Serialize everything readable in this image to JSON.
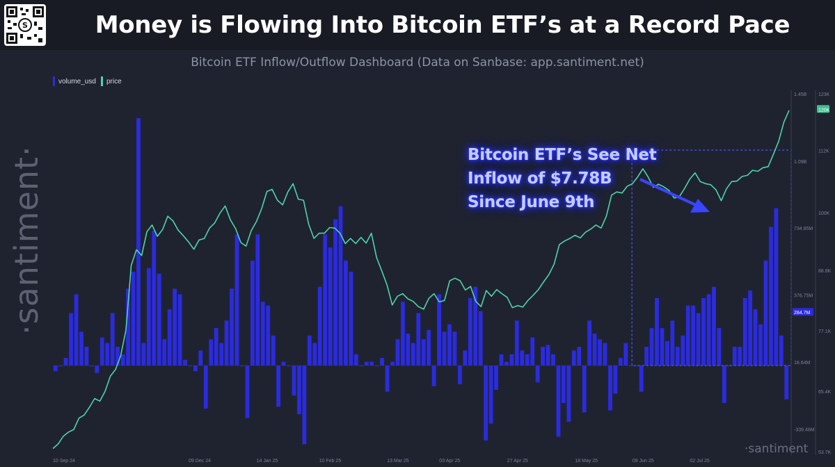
{
  "header": {
    "title": "Money is Flowing Into Bitcoin ETF’s at a Record Pace",
    "subtitle": "Bitcoin ETF Inflow/Outflow Dashboard (Data on Sanbase: app.santiment.net)",
    "qr_glyph": "S"
  },
  "watermarks": {
    "side": "·santiment·",
    "corner": "·santiment"
  },
  "annotation": {
    "lines": [
      "Bitcoin ETF’s See Net",
      "Inflow of $7.78B",
      "Since June 9th"
    ]
  },
  "colors": {
    "volume": "#2b2bde",
    "price": "#4fd4a8",
    "background": "#1f2330",
    "annotation_box": "#4a55ff"
  },
  "chart_data": {
    "type": "bar+line",
    "title": "Bitcoin ETF Inflow/Outflow Dashboard",
    "legend": [
      {
        "name": "volume_usd",
        "type": "bar",
        "axis": "left"
      },
      {
        "name": "price",
        "type": "line",
        "axis": "right"
      }
    ],
    "x_ticks": [
      "10 Sep 24",
      "09 Dec 24",
      "14 Jan 25",
      "10 Feb 25",
      "13 Mar 25",
      "03 Apr 25",
      "27 Apr 25",
      "18 May 25",
      "09 Jun 25",
      "02 Jul 25"
    ],
    "x_tick_index": [
      0,
      26,
      39,
      51,
      64,
      74,
      87,
      100,
      111,
      122
    ],
    "volume_axis": {
      "label": "volume_usd",
      "range_m": [
        -460,
        1450
      ],
      "ticks": [
        {
          "value": 1450,
          "label": "1.45B"
        },
        {
          "value": 1090,
          "label": "1.09B"
        },
        {
          "value": 734.85,
          "label": "734.85M"
        },
        {
          "value": 376.75,
          "label": "376.75M"
        },
        {
          "value": 18.64,
          "label": "18.64M"
        },
        {
          "value": -339.46,
          "label": -339.46,
          "display": "-339.46M"
        }
      ],
      "current": {
        "value": 284.7,
        "label": "284.7M"
      }
    },
    "price_axis": {
      "label": "price",
      "range_k": [
        53.7,
        123
      ],
      "ticks": [
        {
          "value": 123,
          "label": "123K"
        },
        {
          "value": 112,
          "label": "112K"
        },
        {
          "value": 100,
          "label": "100K"
        },
        {
          "value": 88.8,
          "label": "88.8K"
        },
        {
          "value": 77.1,
          "label": "77.1K"
        },
        {
          "value": 65.4,
          "label": "65.4K"
        },
        {
          "value": 53.7,
          "label": "53.7K"
        }
      ],
      "current": {
        "value": 120,
        "label": "120K"
      }
    },
    "volume_usd_millions": [
      -30,
      0,
      40,
      280,
      380,
      180,
      100,
      0,
      -40,
      150,
      120,
      280,
      100,
      60,
      410,
      500,
      1320,
      120,
      520,
      720,
      490,
      140,
      300,
      410,
      380,
      30,
      0,
      -30,
      80,
      -230,
      140,
      200,
      120,
      240,
      410,
      700,
      0,
      -280,
      560,
      700,
      340,
      320,
      160,
      -220,
      20,
      0,
      -160,
      -260,
      -420,
      160,
      120,
      420,
      700,
      630,
      780,
      850,
      560,
      500,
      60,
      0,
      20,
      20,
      0,
      40,
      -140,
      20,
      140,
      340,
      170,
      120,
      280,
      140,
      190,
      -110,
      380,
      180,
      220,
      180,
      -100,
      80,
      360,
      420,
      290,
      -400,
      -310,
      -130,
      60,
      20,
      60,
      240,
      80,
      60,
      150,
      -90,
      100,
      110,
      60,
      -380,
      -200,
      -300,
      80,
      100,
      -250,
      240,
      170,
      140,
      120,
      -240,
      -150,
      40,
      120,
      0,
      0,
      -140,
      100,
      200,
      360,
      200,
      130,
      240,
      100,
      160,
      320,
      320,
      280,
      360,
      380,
      420,
      200,
      -200,
      0,
      100,
      100,
      360,
      400,
      300,
      220,
      560,
      740,
      840,
      160,
      -180
    ],
    "price_k": [
      54.3,
      55.2,
      56.7,
      57.5,
      58.0,
      60.2,
      60.8,
      62.3,
      64.0,
      63.5,
      65.4,
      68.3,
      69.6,
      72.3,
      77.3,
      89.8,
      92.8,
      91.7,
      96.3,
      97.6,
      95.4,
      96.7,
      99.3,
      98.4,
      96.6,
      95.5,
      94.3,
      92.9,
      94.7,
      95.0,
      97.0,
      98.0,
      99.9,
      101.3,
      98.6,
      96.9,
      94.2,
      93.5,
      96.5,
      98.3,
      100.8,
      104.1,
      104.5,
      102.4,
      101.5,
      104.0,
      105.6,
      102.6,
      102.4,
      97.7,
      95.0,
      96.0,
      96.0,
      97.1,
      97.0,
      96.0,
      94.0,
      95.0,
      94.0,
      95.2,
      94.1,
      96.0,
      91.3,
      88.7,
      86.0,
      82.1,
      83.8,
      84.3,
      83.3,
      82.8,
      81.8,
      81.3,
      83.4,
      84.3,
      82.7,
      83.0,
      86.8,
      87.3,
      86.8,
      85.0,
      85.7,
      82.8,
      81.8,
      84.9,
      83.8,
      85.1,
      84.3,
      83.6,
      81.6,
      82.0,
      81.7,
      83.0,
      84.0,
      85.1,
      86.6,
      88.0,
      90.0,
      93.8,
      94.5,
      95.0,
      95.6,
      95.1,
      96.2,
      96.8,
      97.6,
      97.0,
      99.3,
      103.4,
      104.0,
      103.8,
      105.1,
      105.6,
      106.9,
      108.5,
      106.9,
      104.9,
      105.5,
      105.0,
      104.3,
      102.8,
      103.1,
      104.7,
      106.5,
      107.7,
      106.0,
      105.6,
      105.4,
      104.4,
      102.3,
      104.6,
      106.0,
      106.1,
      107.0,
      107.2,
      108.2,
      108.0,
      108.7,
      108.9,
      111.3,
      113.8,
      117.5,
      119.8
    ]
  }
}
